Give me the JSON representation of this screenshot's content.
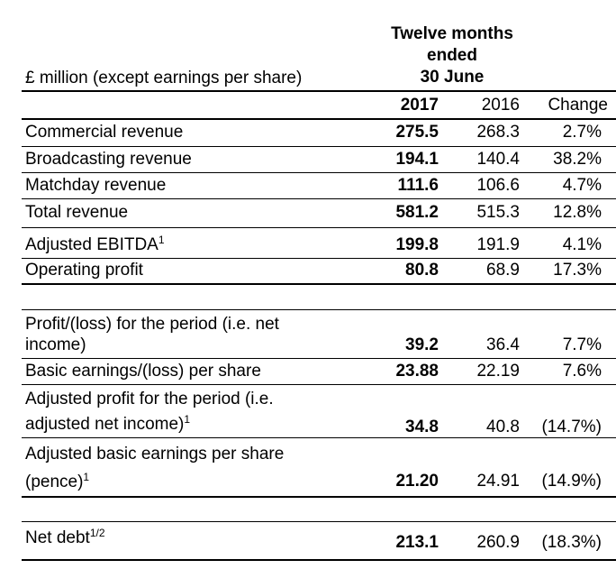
{
  "header": {
    "title_lines": [
      "Twelve months",
      "ended",
      "30 June"
    ],
    "unit_label": "£ million (except earnings per share)",
    "columns": [
      "2017",
      "2016",
      "Change"
    ]
  },
  "rows": [
    {
      "label": "Commercial revenue",
      "sup": "",
      "v2017": "275.5",
      "v2016": "268.3",
      "change": "2.7%"
    },
    {
      "label": "Broadcasting revenue",
      "sup": "",
      "v2017": "194.1",
      "v2016": "140.4",
      "change": "38.2%"
    },
    {
      "label": "Matchday revenue",
      "sup": "",
      "v2017": "111.6",
      "v2016": "106.6",
      "change": "4.7%"
    },
    {
      "label": "Total revenue",
      "sup": "",
      "v2017": "581.2",
      "v2016": "515.3",
      "change": "12.8%"
    },
    {
      "label": "Adjusted EBITDA",
      "sup": "1",
      "v2017": "199.8",
      "v2016": "191.9",
      "change": "4.1%"
    },
    {
      "label": "Operating profit",
      "sup": "",
      "v2017": "80.8",
      "v2016": "68.9",
      "change": "17.3%"
    },
    {
      "label": "Profit/(loss) for the period (i.e. net income)",
      "sup": "",
      "v2017": "39.2",
      "v2016": "36.4",
      "change": "7.7%"
    },
    {
      "label": "Basic earnings/(loss) per share",
      "sup": "",
      "v2017": "23.88",
      "v2016": "22.19",
      "change": "7.6%"
    },
    {
      "label": "Adjusted profit for the period (i.e. adjusted net income)",
      "sup": "1",
      "v2017": "34.8",
      "v2016": "40.8",
      "change": "(14.7%)"
    },
    {
      "label": "Adjusted basic earnings per share (pence)",
      "sup": "1",
      "v2017": "21.20",
      "v2016": "24.91",
      "change": "(14.9%)"
    },
    {
      "label": "Net debt",
      "sup": "1/2",
      "v2017": "213.1",
      "v2016": "260.9",
      "change": "(18.3%)"
    }
  ]
}
